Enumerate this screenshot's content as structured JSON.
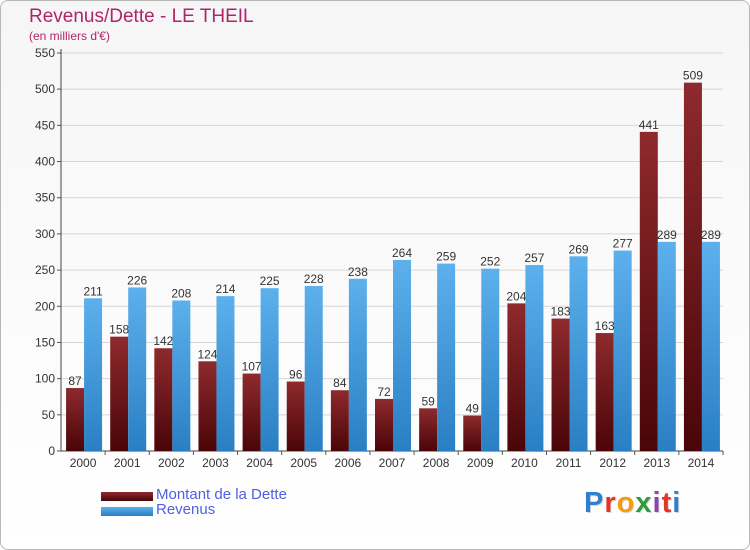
{
  "title": "Revenus/Dette - LE THEIL",
  "subtitle": "(en milliers d'€)",
  "logo": {
    "text": "Proxiti",
    "colors": [
      "#2f7fd1",
      "#e8332a",
      "#f39c12",
      "#2e9c3a",
      "#8e44ad",
      "#e8332a",
      "#2f7fd1"
    ]
  },
  "legend": [
    {
      "label": "Montant de la Dette",
      "color": "#6b0f12"
    },
    {
      "label": "Revenus",
      "color": "#3a95d8"
    }
  ],
  "chart_data": {
    "type": "bar",
    "title": "Revenus/Dette - LE THEIL",
    "subtitle": "(en milliers d'€)",
    "categories": [
      "2000",
      "2001",
      "2002",
      "2003",
      "2004",
      "2005",
      "2006",
      "2007",
      "2008",
      "2009",
      "2010",
      "2011",
      "2012",
      "2013",
      "2014"
    ],
    "series": [
      {
        "name": "Montant de la Dette",
        "color": "#6b0f12",
        "values": [
          87,
          158,
          142,
          124,
          107,
          96,
          84,
          72,
          59,
          49,
          204,
          183,
          163,
          441,
          509
        ]
      },
      {
        "name": "Revenus",
        "color": "#3a95d8",
        "values": [
          211,
          226,
          208,
          214,
          225,
          228,
          238,
          264,
          259,
          252,
          257,
          269,
          277,
          289,
          289
        ]
      }
    ],
    "ylim": [
      0,
      550
    ],
    "yticks": [
      0,
      50,
      100,
      150,
      200,
      250,
      300,
      350,
      400,
      450,
      500,
      550
    ],
    "grid": true,
    "legend_position": "bottom-left"
  }
}
